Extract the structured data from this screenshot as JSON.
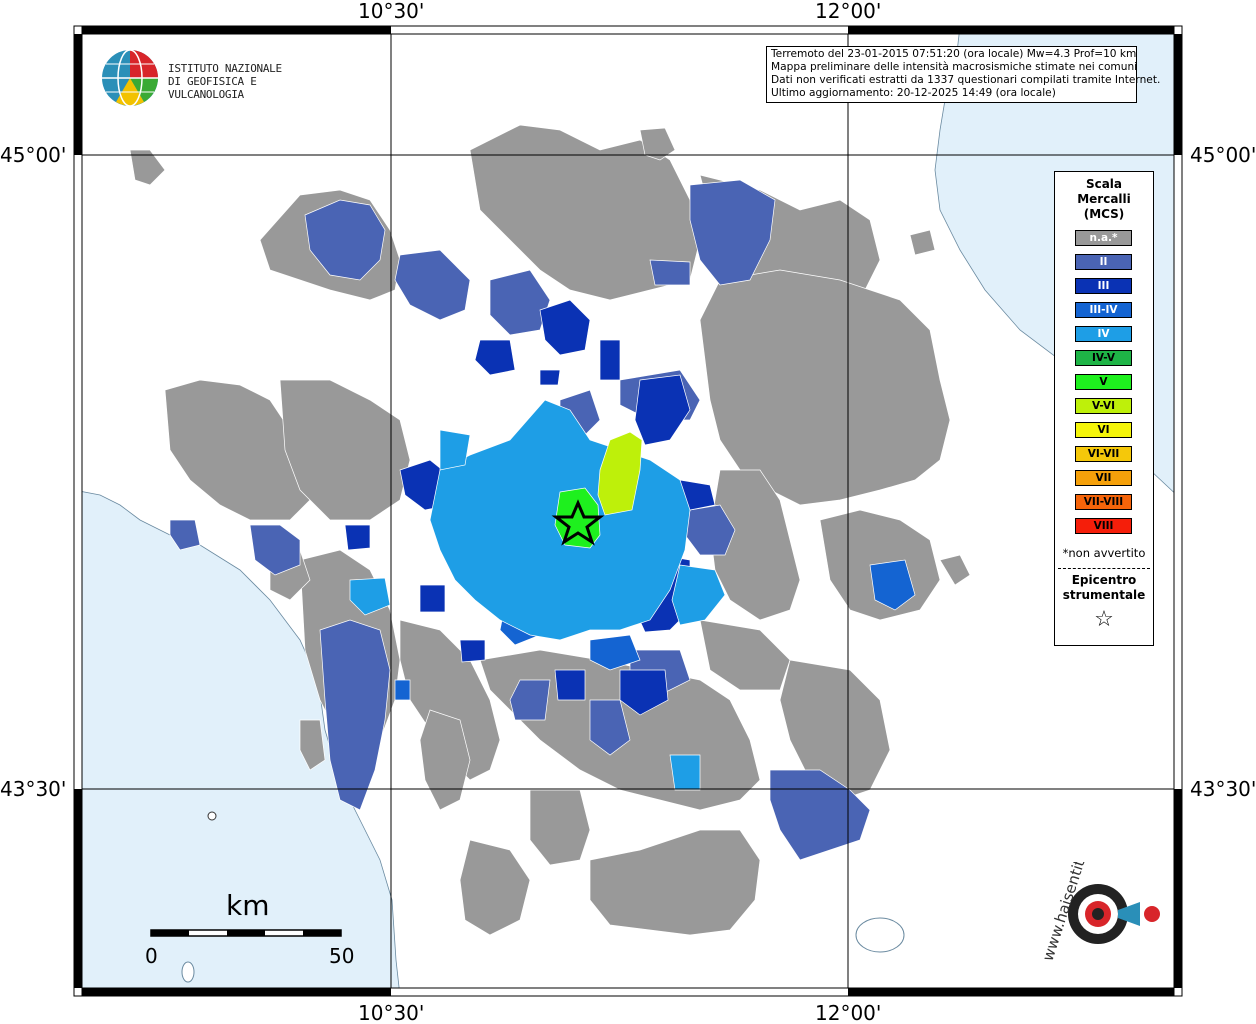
{
  "map": {
    "lon_labels": [
      "10°30'",
      "12°00'"
    ],
    "lat_labels": [
      "45°00'",
      "43°30'"
    ]
  },
  "logo": {
    "line1": "ISTITUTO NAZIONALE",
    "line2": "DI GEOFISICA E VULCANOLOGIA"
  },
  "info": {
    "line1": "Terremoto del 23-01-2015 07:51:20 (ora locale) Mw=4.3 Prof=10 km",
    "line2": "Mappa preliminare delle intensità macrosismiche stimate nei comuni",
    "line3": "Dati non verificati estratti da 1337 questionari compilati tramite Internet.",
    "line4": "Ultimo aggiornamento: 20-12-2025 14:49 (ora locale)"
  },
  "legend": {
    "title1": "Scala",
    "title2": "Mercalli",
    "title3": "(MCS)",
    "items": [
      {
        "label": "n.a.*",
        "color": "#999999",
        "text": "#ffffff"
      },
      {
        "label": "II",
        "color": "#4a64b4",
        "text": "#ffffff"
      },
      {
        "label": "III",
        "color": "#0a32b4",
        "text": "#ffffff"
      },
      {
        "label": "III-IV",
        "color": "#1464d2",
        "text": "#ffffff"
      },
      {
        "label": "IV",
        "color": "#1e9ee6",
        "text": "#ffffff"
      },
      {
        "label": "IV-V",
        "color": "#1eb446",
        "text": "#000000"
      },
      {
        "label": "V",
        "color": "#1ef01e",
        "text": "#000000"
      },
      {
        "label": "V-VI",
        "color": "#bef00a",
        "text": "#000000"
      },
      {
        "label": "VI",
        "color": "#f5f50a",
        "text": "#000000"
      },
      {
        "label": "VI-VII",
        "color": "#f5c80a",
        "text": "#000000"
      },
      {
        "label": "VII",
        "color": "#f5a00a",
        "text": "#000000"
      },
      {
        "label": "VII-VIII",
        "color": "#f5640a",
        "text": "#000000"
      },
      {
        "label": "VIII",
        "color": "#f51e0a",
        "text": "#000000"
      }
    ],
    "note": "*non avvertito",
    "epi1": "Epicentro",
    "epi2": "strumentale",
    "star": "☆"
  },
  "scale": {
    "title": "km",
    "start": "0",
    "end": "50"
  },
  "site_logo": "www.haisentitoilterremoto.it"
}
